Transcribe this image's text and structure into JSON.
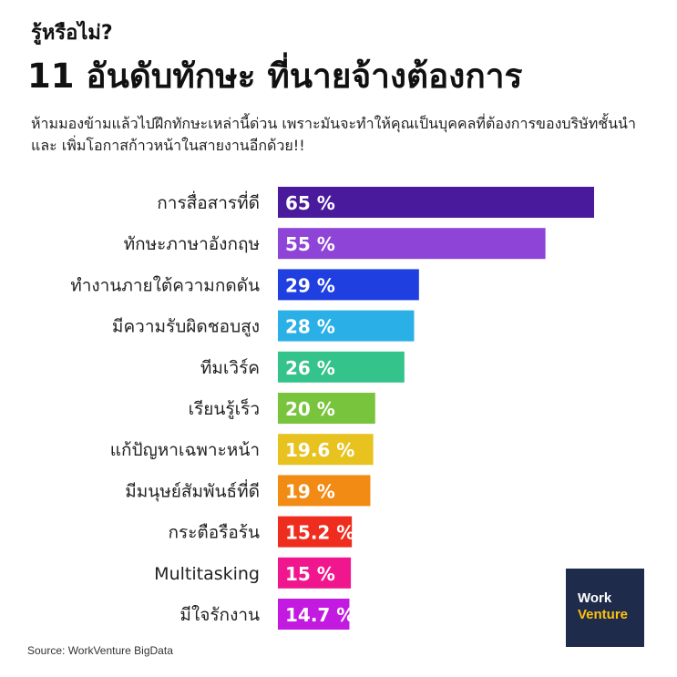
{
  "kicker": "รู้หรือไม่?",
  "title": "11 อันดับทักษะ ที่นายจ้างต้องการ",
  "subtitle": "ห้ามมองข้ามแล้วไปฝึกทักษะเหล่านี้ด่วน เพราะมันจะทำให้คุณเป็นบุคคลที่ต้องการของบริษัทชั้นนำ และ เพิ่มโอกาสก้าวหน้าในสายงานอีกด้วย!!",
  "source": "Source: WorkVenture BigData",
  "logo": {
    "line1": "Work",
    "line2": "Venture"
  },
  "chart_data": {
    "type": "bar",
    "orientation": "horizontal",
    "categories": [
      "การสื่อสารที่ดี",
      "ทักษะภาษาอังกฤษ",
      "ทำงานภายใต้ความกดดัน",
      "มีความรับผิดชอบสูง",
      "ทีมเวิร์ค",
      "เรียนรู้เร็ว",
      "แก้ปัญหาเฉพาะหน้า",
      "มีมนุษย์สัมพันธ์ที่ดี",
      "กระตือรือร้น",
      "Multitasking",
      "มีใจรักงาน"
    ],
    "values": [
      65,
      55,
      29,
      28,
      26,
      20,
      19.6,
      19,
      15.2,
      15,
      14.7
    ],
    "value_labels": [
      "65 %",
      "55 %",
      "29 %",
      "28 %",
      "26 %",
      "20 %",
      "19.6 %",
      "19 %",
      "15.2 %",
      "15 %",
      "14.7 %"
    ],
    "colors": [
      "#4a1a9c",
      "#8e44d6",
      "#1f3fe0",
      "#2ab0e6",
      "#34c38a",
      "#78c43c",
      "#e8c21e",
      "#f28b14",
      "#ee2d1e",
      "#f0178e",
      "#c21ae0"
    ]
  }
}
